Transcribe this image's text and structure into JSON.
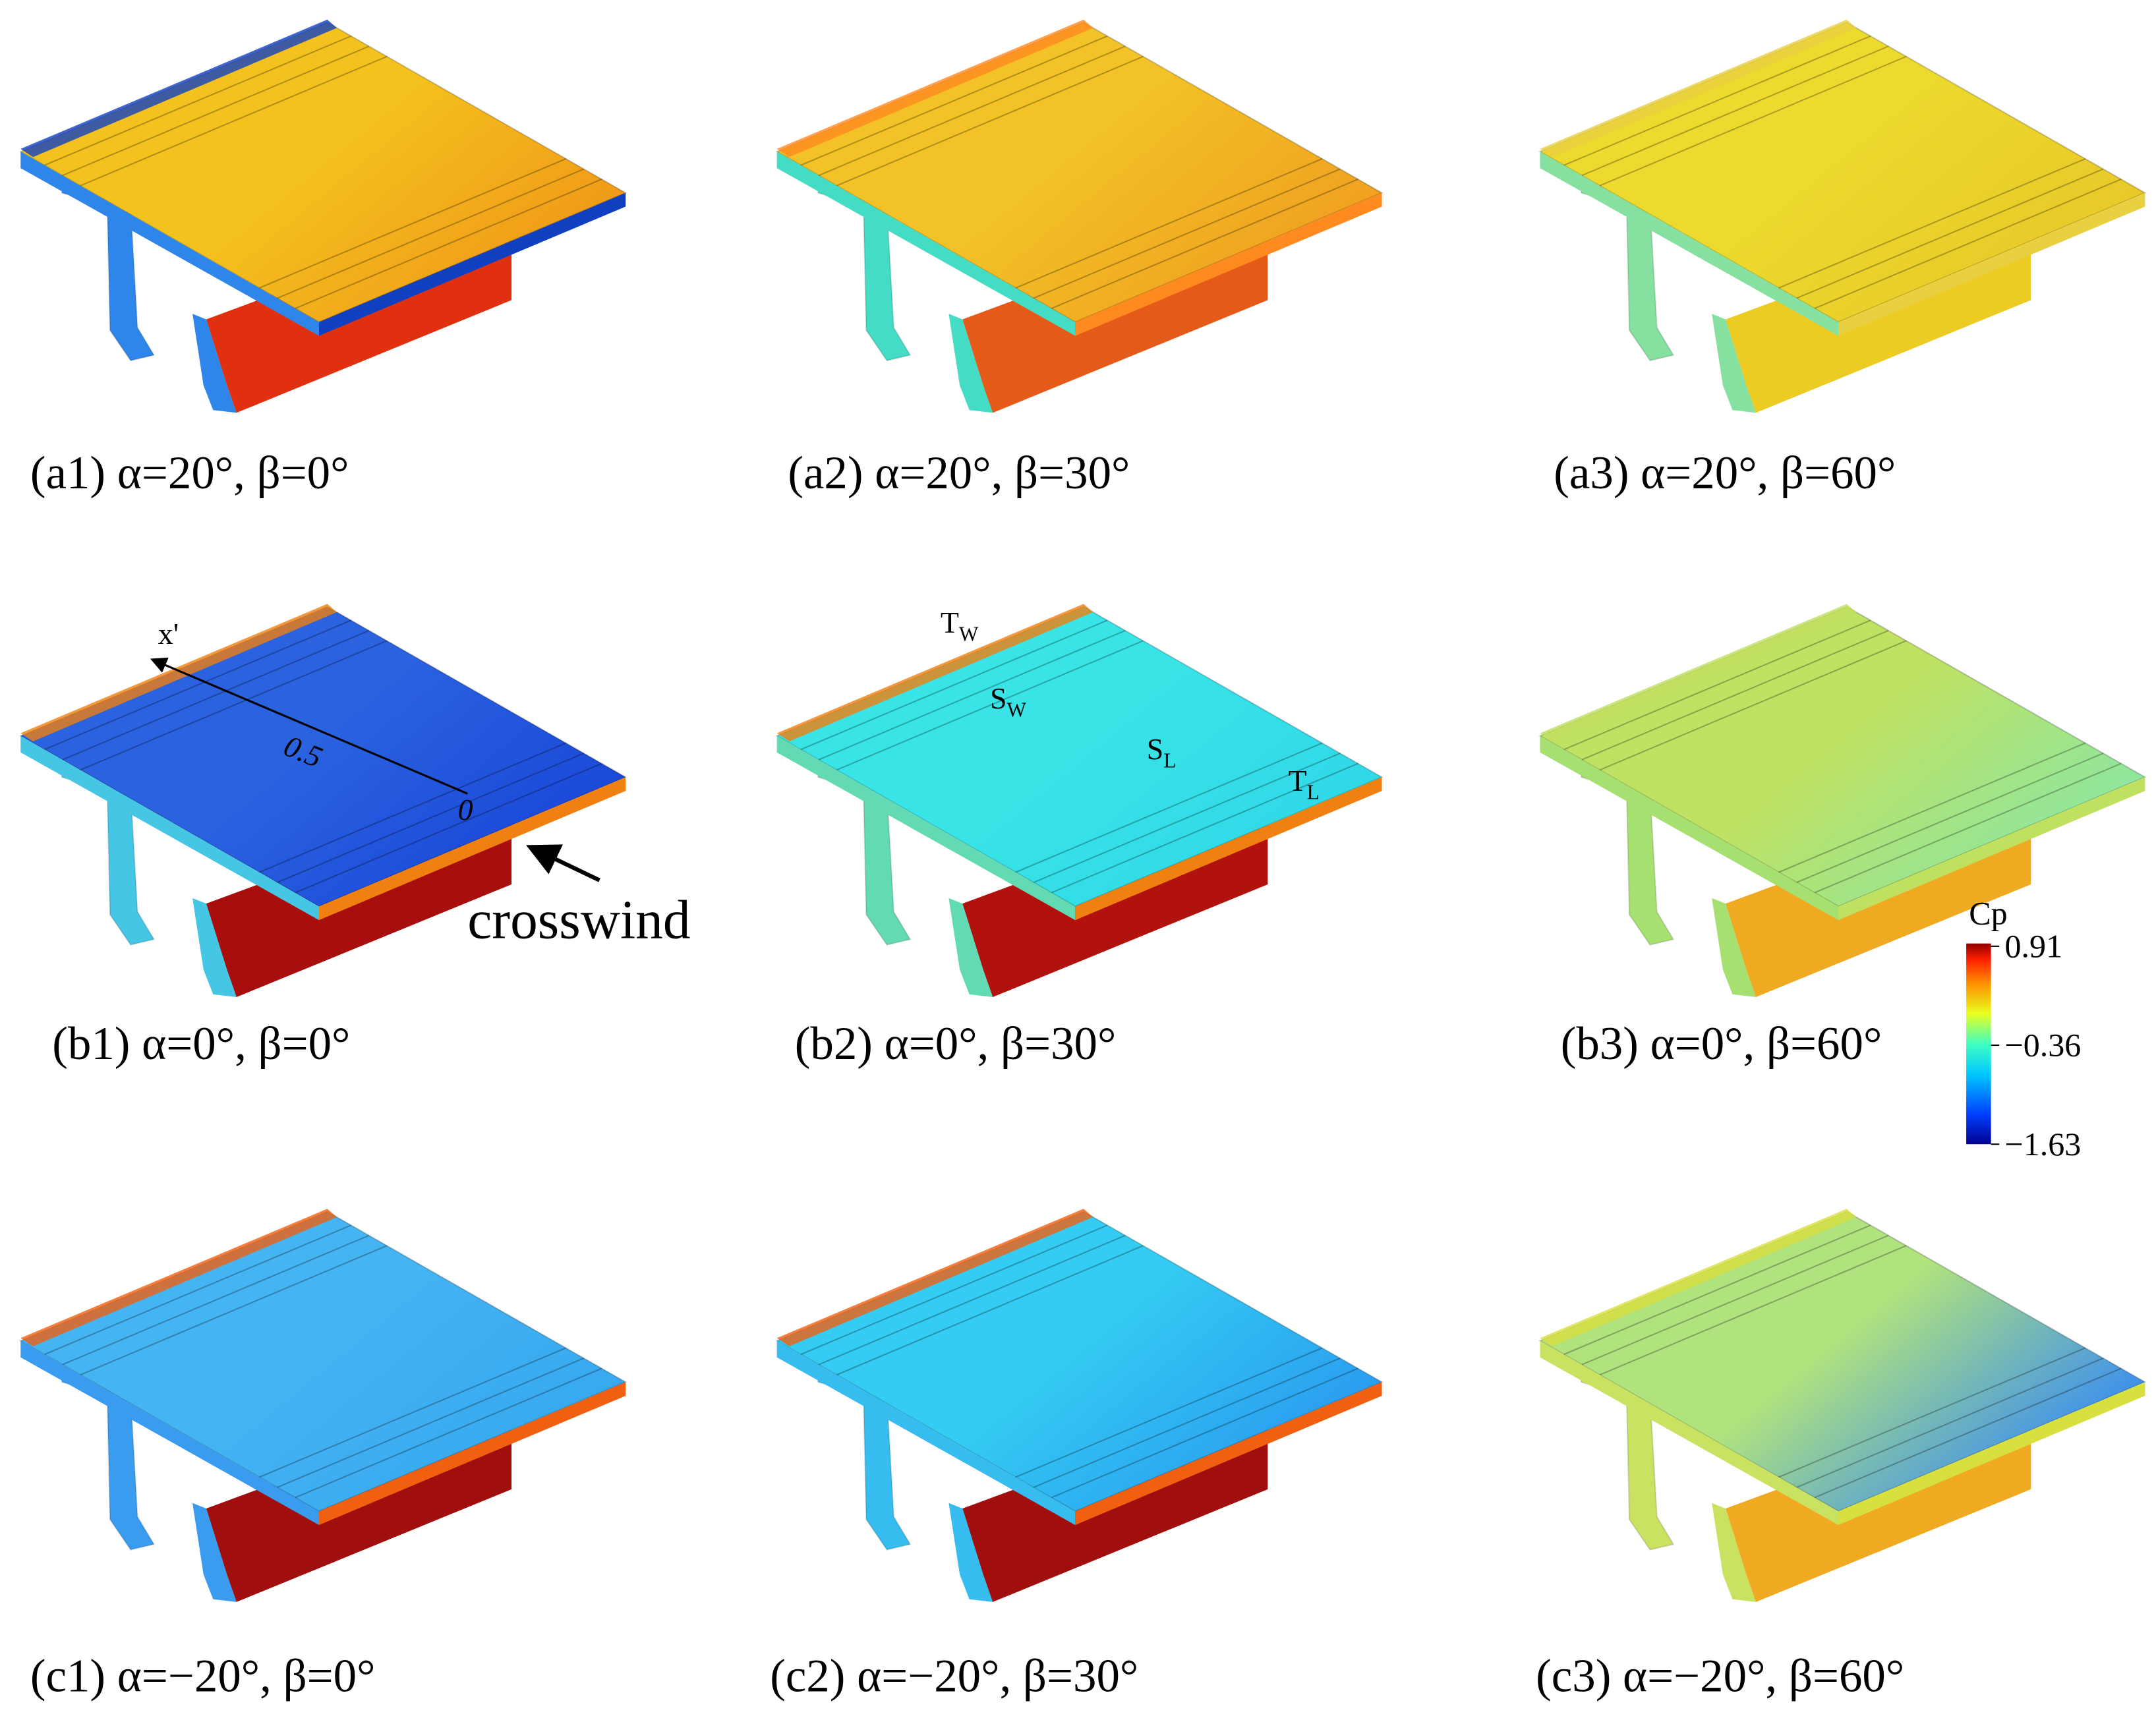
{
  "panels": [
    {
      "caption": "(a1) α=20°, β=0°"
    },
    {
      "caption": "(a2) α=20°, β=30°"
    },
    {
      "caption": "(a3) α=20°, β=60°"
    },
    {
      "caption": "(b1) α=0°, β=0°"
    },
    {
      "caption": "(b2) α=0°, β=30°"
    },
    {
      "caption": "(b3) α=0°, β=60°"
    },
    {
      "caption": "(c1) α=−20°, β=0°"
    },
    {
      "caption": "(c2) α=−20°, β=30°"
    },
    {
      "caption": "(c3) α=−20°, β=60°"
    }
  ],
  "annotations": {
    "axis_label": "x'",
    "tick_mid": "0.5",
    "tick_origin": "0",
    "wind_label": "crosswind",
    "points": [
      {
        "text": "T",
        "sub": "W"
      },
      {
        "text": "S",
        "sub": "W"
      },
      {
        "text": "S",
        "sub": "L"
      },
      {
        "text": "T",
        "sub": "L"
      }
    ]
  },
  "colorbar": {
    "title": "Cp",
    "ticks": [
      {
        "value": 0.91,
        "label": "0.91"
      },
      {
        "value": -0.36,
        "label": "−0.36"
      },
      {
        "value": -1.63,
        "label": "−1.63"
      }
    ]
  }
}
